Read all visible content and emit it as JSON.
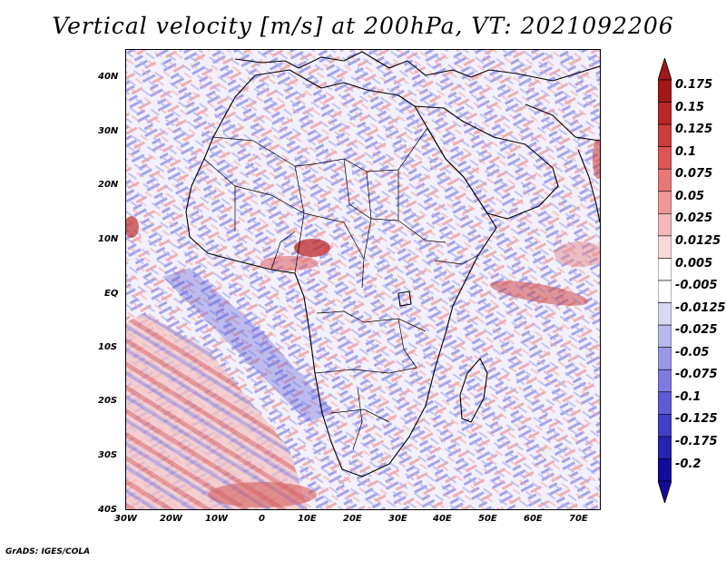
{
  "title": "Vertical velocity [m/s] at 200hPa, VT: 2021092206",
  "credit": "GrADS: IGES/COLA",
  "map": {
    "region": "Africa",
    "lat_labels": [
      "40N",
      "30N",
      "20N",
      "10N",
      "EQ",
      "10S",
      "20S",
      "30S",
      "40S"
    ],
    "lon_labels": [
      "30W",
      "20W",
      "10W",
      "0",
      "10E",
      "20E",
      "30E",
      "40E",
      "50E",
      "60E",
      "70E"
    ]
  },
  "colorbar": {
    "labels": [
      "0.175",
      "0.15",
      "0.125",
      "0.1",
      "0.075",
      "0.05",
      "0.025",
      "0.0125",
      "0.005",
      "-0.005",
      "-0.0125",
      "-0.025",
      "-0.05",
      "-0.075",
      "-0.1",
      "-0.125",
      "-0.175",
      "-0.2"
    ],
    "colors": [
      "#a01818",
      "#b82828",
      "#cc3c3c",
      "#dc5656",
      "#e87878",
      "#f09898",
      "#f6b8b8",
      "#fad8d8",
      "#ffffff",
      "#ffffff",
      "#d8d8f4",
      "#b8b8ee",
      "#9898e6",
      "#7c7ce0",
      "#5c5cd4",
      "#4040c4",
      "#2424b0",
      "#100c9c"
    ]
  }
}
